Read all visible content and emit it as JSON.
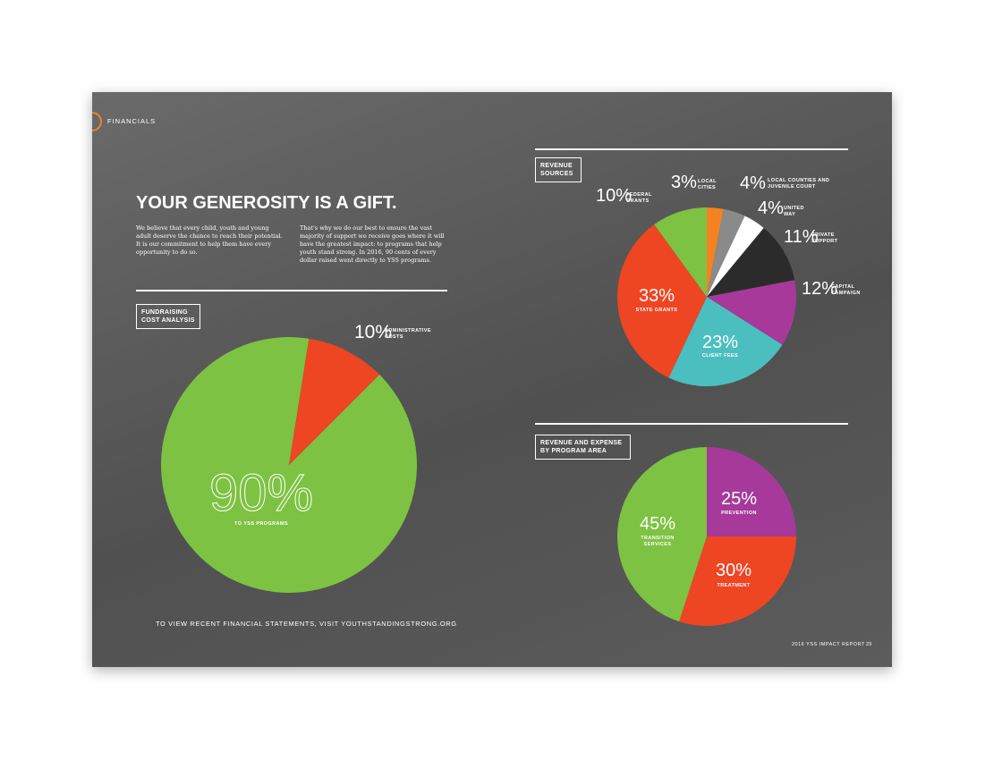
{
  "header": {
    "section": "FINANCIALS",
    "title": "YOUR GENEROSITY IS A GIFT.",
    "paragraphs": [
      "We believe that every child, youth and young adult deserve the chance to reach their potential. It is our commitment to help them have every opportunity to do so.",
      "That's why we do our best to ensure the vast majority of support we receive goes where it will have the greatest impact: to programs that help youth stand strong. In 2016, 90 cents of every dollar raised went directly to YSS programs."
    ]
  },
  "footer": {
    "link": "TO VIEW RECENT FINANCIAL STATEMENTS, VISIT YOUTHSTANDINGSTRONG.ORG",
    "report": "2016 YSS IMPACT REPORT",
    "page": "23"
  },
  "chart_data": [
    {
      "type": "pie",
      "title": "FUNDRAISING COST ANALYSIS",
      "categories": [
        "TO YSS PROGRAMS",
        "ADMINISTRATIVE COSTS"
      ],
      "values": [
        90,
        10
      ],
      "value_labels": [
        "90%",
        "10%"
      ],
      "colors": [
        "#7dc242",
        "#ee4523"
      ]
    },
    {
      "type": "pie",
      "title": "REVENUE SOURCES",
      "categories": [
        "LOCAL CITIES",
        "LOCAL COUNTIES AND JUVENILE COURT",
        "UNITED WAY",
        "PRIVATE SUPPORT",
        "CAPITAL CAMPAIGN",
        "CLIENT FEES",
        "STATE GRANTS",
        "FEDERAL GRANTS"
      ],
      "values": [
        3,
        4,
        4,
        11,
        12,
        23,
        33,
        10
      ],
      "value_labels": [
        "3%",
        "4%",
        "4%",
        "11%",
        "12%",
        "23%",
        "33%",
        "10%"
      ],
      "colors": [
        "#f58220",
        "#8a8a8a",
        "#ffffff",
        "#2b2b2b",
        "#a6399a",
        "#4bbfc0",
        "#ee4523",
        "#7dc242"
      ]
    },
    {
      "type": "pie",
      "title": "REVENUE AND EXPENSE BY PROGRAM AREA",
      "categories": [
        "PREVENTION",
        "TREATMENT",
        "TRANSITION SERVICES"
      ],
      "values": [
        25,
        30,
        45
      ],
      "value_labels": [
        "25%",
        "30%",
        "45%"
      ],
      "colors": [
        "#a6399a",
        "#ee4523",
        "#7dc242"
      ]
    }
  ]
}
